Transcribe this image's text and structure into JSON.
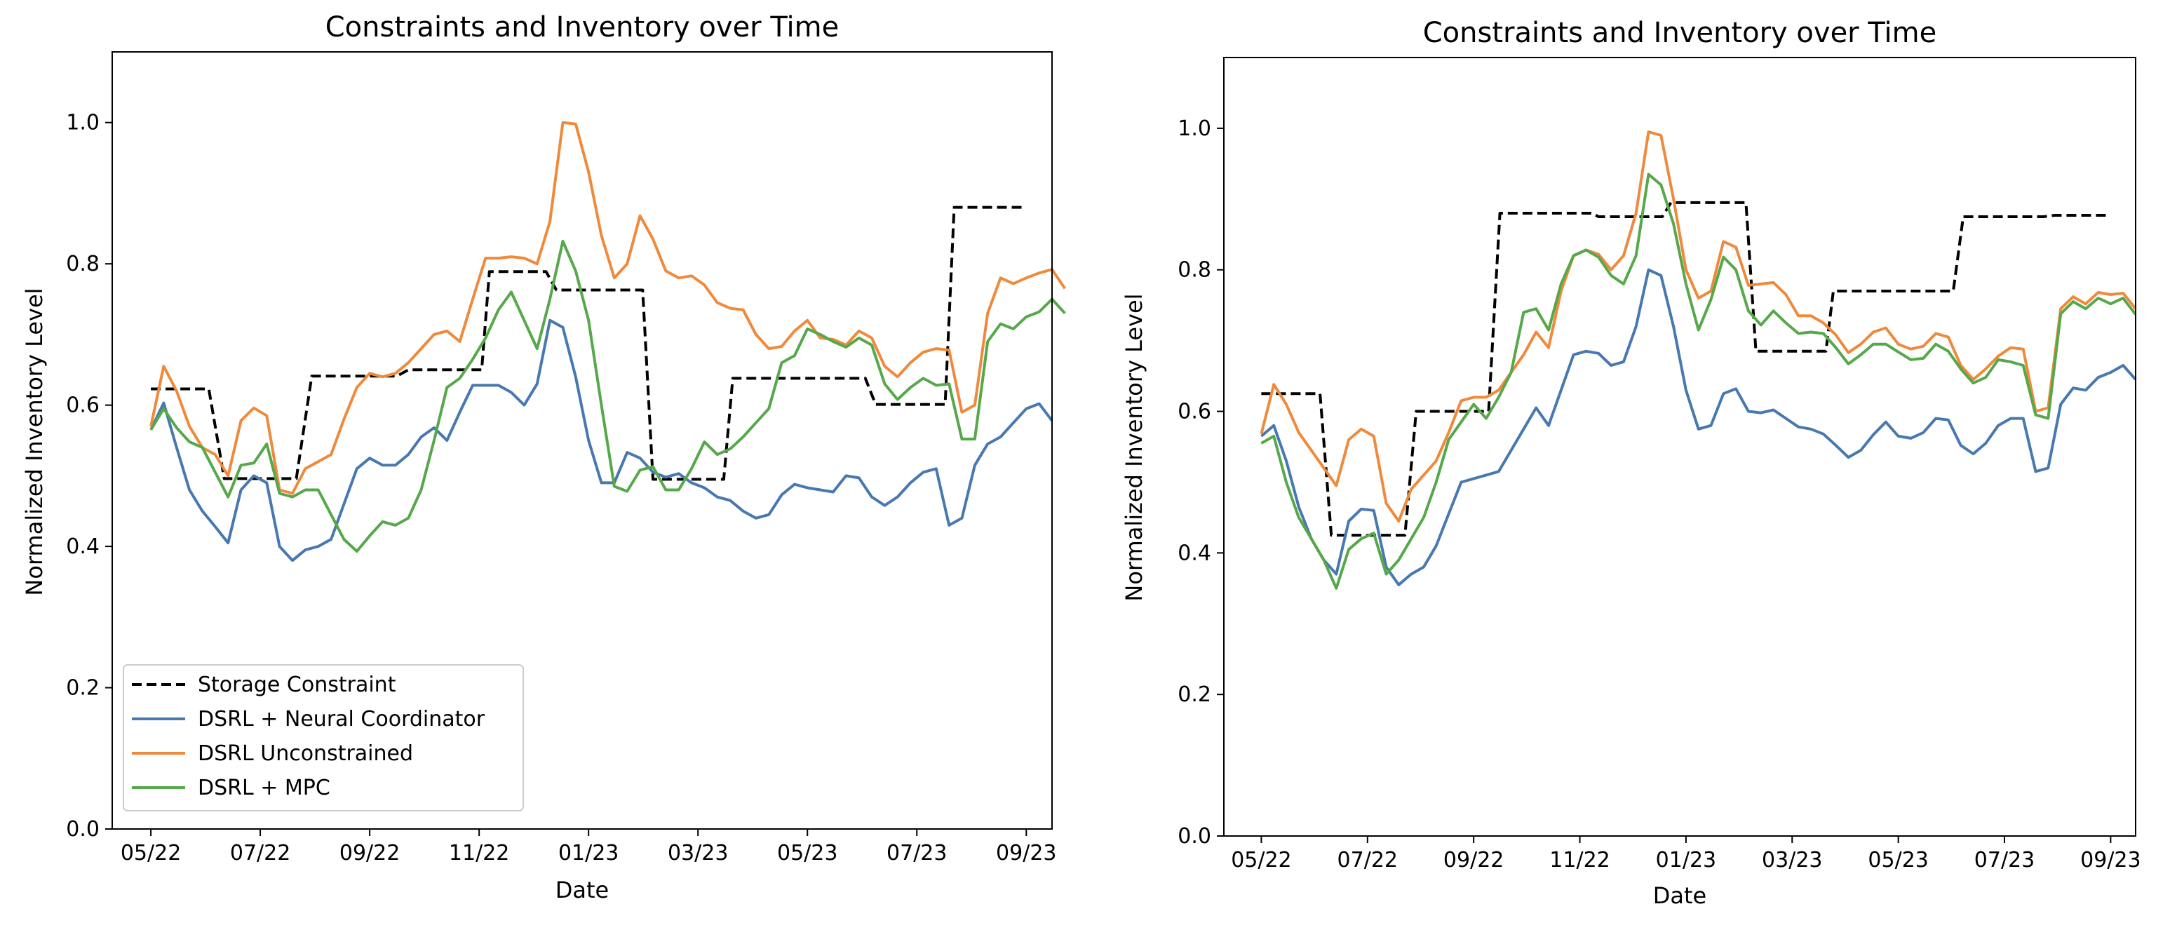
{
  "chart_data": [
    {
      "type": "line",
      "title": "Constraints and Inventory over Time",
      "xlabel": "Date",
      "ylabel": "Normalized Inventory Level",
      "xlim": [
        -3,
        70
      ],
      "ylim": [
        0,
        1.1
      ],
      "xticks": [
        {
          "x": 0,
          "label": "05/22"
        },
        {
          "x": 8.5,
          "label": "07/22"
        },
        {
          "x": 17,
          "label": "09/22"
        },
        {
          "x": 25.5,
          "label": "11/22"
        },
        {
          "x": 34,
          "label": "01/23"
        },
        {
          "x": 42.5,
          "label": "03/23"
        },
        {
          "x": 51,
          "label": "05/23"
        },
        {
          "x": 59.5,
          "label": "07/23"
        },
        {
          "x": 68,
          "label": "09/23"
        }
      ],
      "yticks": [
        0.0,
        0.2,
        0.4,
        0.6,
        0.8,
        1.0
      ],
      "ytick_labels": [
        "0.0",
        "0.2",
        "0.4",
        "0.6",
        "0.8",
        "1.0"
      ],
      "legend": {
        "placement": "lower-left"
      },
      "series": [
        {
          "name": "Storage Constraint",
          "color": "#000000",
          "dashed": true,
          "x": [
            0,
            4.5,
            5.7,
            11.3,
            12.5,
            19.1,
            20,
            25.7,
            26.3,
            30.7,
            31.5,
            38.2,
            39,
            44.5,
            45.2,
            55.5,
            56.3,
            61.7,
            62.4,
            68
          ],
          "y": [
            0.623,
            0.623,
            0.496,
            0.496,
            0.641,
            0.641,
            0.65,
            0.65,
            0.789,
            0.789,
            0.763,
            0.763,
            0.495,
            0.495,
            0.638,
            0.638,
            0.601,
            0.601,
            0.88,
            0.88
          ]
        },
        {
          "name": "DSRL + Neural Coordinator",
          "color": "#4878b0",
          "dashed": false,
          "y": [
            0.565,
            0.603,
            0.54,
            0.48,
            0.45,
            0.428,
            0.405,
            0.48,
            0.5,
            0.49,
            0.4,
            0.38,
            0.395,
            0.4,
            0.41,
            0.46,
            0.51,
            0.525,
            0.515,
            0.515,
            0.53,
            0.555,
            0.568,
            0.55,
            0.59,
            0.628,
            0.628,
            0.628,
            0.618,
            0.6,
            0.63,
            0.72,
            0.71,
            0.64,
            0.55,
            0.49,
            0.49,
            0.533,
            0.525,
            0.505,
            0.498,
            0.503,
            0.49,
            0.483,
            0.47,
            0.465,
            0.45,
            0.44,
            0.445,
            0.473,
            0.488,
            0.483,
            0.48,
            0.477,
            0.5,
            0.497,
            0.47,
            0.458,
            0.47,
            0.49,
            0.505,
            0.51,
            0.43,
            0.44,
            0.515,
            0.545,
            0.555,
            0.575,
            0.595,
            0.602,
            0.578
          ]
        },
        {
          "name": "DSRL Unconstrained",
          "color": "#ef8a3c",
          "dashed": false,
          "y": [
            0.57,
            0.655,
            0.62,
            0.57,
            0.54,
            0.53,
            0.5,
            0.578,
            0.596,
            0.585,
            0.48,
            0.475,
            0.51,
            0.52,
            0.53,
            0.58,
            0.625,
            0.645,
            0.64,
            0.645,
            0.66,
            0.68,
            0.7,
            0.705,
            0.69,
            0.75,
            0.808,
            0.808,
            0.81,
            0.808,
            0.8,
            0.86,
            1.0,
            0.998,
            0.93,
            0.84,
            0.78,
            0.8,
            0.868,
            0.835,
            0.79,
            0.78,
            0.783,
            0.77,
            0.745,
            0.737,
            0.735,
            0.7,
            0.68,
            0.683,
            0.705,
            0.72,
            0.695,
            0.693,
            0.685,
            0.705,
            0.695,
            0.655,
            0.64,
            0.66,
            0.675,
            0.68,
            0.678,
            0.59,
            0.6,
            0.73,
            0.78,
            0.772,
            0.78,
            0.787,
            0.792,
            0.765
          ]
        },
        {
          "name": "DSRL + MPC",
          "color": "#56a84a",
          "dashed": false,
          "y": [
            0.565,
            0.595,
            0.568,
            0.548,
            0.54,
            0.505,
            0.47,
            0.515,
            0.518,
            0.545,
            0.475,
            0.47,
            0.48,
            0.48,
            0.445,
            0.41,
            0.393,
            0.415,
            0.435,
            0.43,
            0.44,
            0.48,
            0.55,
            0.625,
            0.638,
            0.665,
            0.695,
            0.735,
            0.76,
            0.72,
            0.68,
            0.75,
            0.832,
            0.79,
            0.72,
            0.6,
            0.485,
            0.478,
            0.508,
            0.513,
            0.48,
            0.48,
            0.51,
            0.548,
            0.53,
            0.538,
            0.555,
            0.575,
            0.595,
            0.66,
            0.67,
            0.708,
            0.7,
            0.69,
            0.682,
            0.695,
            0.685,
            0.63,
            0.608,
            0.625,
            0.638,
            0.628,
            0.63,
            0.552,
            0.552,
            0.69,
            0.715,
            0.708,
            0.725,
            0.732,
            0.75,
            0.73
          ]
        }
      ]
    },
    {
      "type": "line",
      "title": "Constraints and Inventory over Time",
      "xlabel": "Date",
      "ylabel": "Normalized Inventory Level",
      "xlim": [
        -3,
        70
      ],
      "ylim": [
        0,
        1.1
      ],
      "xticks": [
        {
          "x": 0,
          "label": "05/22"
        },
        {
          "x": 8.5,
          "label": "07/22"
        },
        {
          "x": 17,
          "label": "09/22"
        },
        {
          "x": 25.5,
          "label": "11/22"
        },
        {
          "x": 34,
          "label": "01/23"
        },
        {
          "x": 42.5,
          "label": "03/23"
        },
        {
          "x": 51,
          "label": "05/23"
        },
        {
          "x": 59.5,
          "label": "07/23"
        },
        {
          "x": 68,
          "label": "09/23"
        }
      ],
      "yticks": [
        0.0,
        0.2,
        0.4,
        0.6,
        0.8,
        1.0
      ],
      "ytick_labels": [
        "0.0",
        "0.2",
        "0.4",
        "0.6",
        "0.8",
        "1.0"
      ],
      "legend": null,
      "series": [
        {
          "name": "Storage Constraint",
          "color": "#000000",
          "dashed": true,
          "x": [
            0,
            4.7,
            5.6,
            11.5,
            12.4,
            18.2,
            19.1,
            26.5,
            27,
            32.1,
            32.8,
            38.8,
            39.6,
            45.2,
            45.8,
            55.4,
            56.2,
            62.6,
            63.5,
            68
          ],
          "y": [
            0.625,
            0.625,
            0.425,
            0.425,
            0.6,
            0.6,
            0.88,
            0.88,
            0.875,
            0.875,
            0.895,
            0.895,
            0.685,
            0.685,
            0.77,
            0.77,
            0.875,
            0.875,
            0.877,
            0.877
          ]
        },
        {
          "name": "DSRL + Neural Coordinator",
          "color": "#4878b0",
          "dashed": false,
          "y": [
            0.565,
            0.58,
            0.53,
            0.465,
            0.42,
            0.39,
            0.37,
            0.445,
            0.462,
            0.46,
            0.38,
            0.355,
            0.37,
            0.38,
            0.41,
            0.455,
            0.5,
            0.505,
            0.51,
            0.515,
            0.545,
            0.575,
            0.605,
            0.58,
            0.63,
            0.68,
            0.685,
            0.682,
            0.665,
            0.67,
            0.72,
            0.8,
            0.792,
            0.72,
            0.63,
            0.575,
            0.58,
            0.625,
            0.632,
            0.6,
            0.598,
            0.602,
            0.59,
            0.578,
            0.575,
            0.568,
            0.552,
            0.535,
            0.545,
            0.567,
            0.585,
            0.565,
            0.562,
            0.57,
            0.59,
            0.588,
            0.552,
            0.54,
            0.555,
            0.58,
            0.59,
            0.59,
            0.515,
            0.52,
            0.61,
            0.633,
            0.63,
            0.648,
            0.655,
            0.665,
            0.645
          ]
        },
        {
          "name": "DSRL Unconstrained",
          "color": "#ef8a3c",
          "dashed": false,
          "y": [
            0.568,
            0.638,
            0.61,
            0.57,
            0.545,
            0.52,
            0.495,
            0.56,
            0.575,
            0.565,
            0.47,
            0.445,
            0.49,
            0.51,
            0.53,
            0.57,
            0.615,
            0.62,
            0.62,
            0.63,
            0.655,
            0.68,
            0.712,
            0.69,
            0.77,
            0.82,
            0.828,
            0.822,
            0.8,
            0.82,
            0.88,
            0.995,
            0.99,
            0.9,
            0.8,
            0.76,
            0.77,
            0.84,
            0.832,
            0.778,
            0.78,
            0.782,
            0.765,
            0.735,
            0.735,
            0.725,
            0.708,
            0.683,
            0.695,
            0.712,
            0.718,
            0.695,
            0.688,
            0.692,
            0.71,
            0.705,
            0.665,
            0.645,
            0.66,
            0.678,
            0.69,
            0.688,
            0.6,
            0.605,
            0.745,
            0.762,
            0.752,
            0.768,
            0.765,
            0.767,
            0.745
          ]
        },
        {
          "name": "DSRL + MPC",
          "color": "#56a84a",
          "dashed": false,
          "y": [
            0.555,
            0.565,
            0.5,
            0.45,
            0.42,
            0.39,
            0.35,
            0.405,
            0.42,
            0.428,
            0.37,
            0.39,
            0.42,
            0.45,
            0.5,
            0.56,
            0.585,
            0.61,
            0.59,
            0.62,
            0.655,
            0.74,
            0.745,
            0.715,
            0.78,
            0.82,
            0.828,
            0.818,
            0.792,
            0.78,
            0.82,
            0.935,
            0.92,
            0.865,
            0.78,
            0.715,
            0.758,
            0.818,
            0.8,
            0.742,
            0.722,
            0.742,
            0.725,
            0.71,
            0.712,
            0.71,
            0.69,
            0.667,
            0.68,
            0.695,
            0.695,
            0.684,
            0.673,
            0.675,
            0.695,
            0.685,
            0.66,
            0.64,
            0.648,
            0.673,
            0.67,
            0.665,
            0.595,
            0.59,
            0.738,
            0.755,
            0.745,
            0.76,
            0.752,
            0.76,
            0.737
          ]
        }
      ]
    }
  ]
}
